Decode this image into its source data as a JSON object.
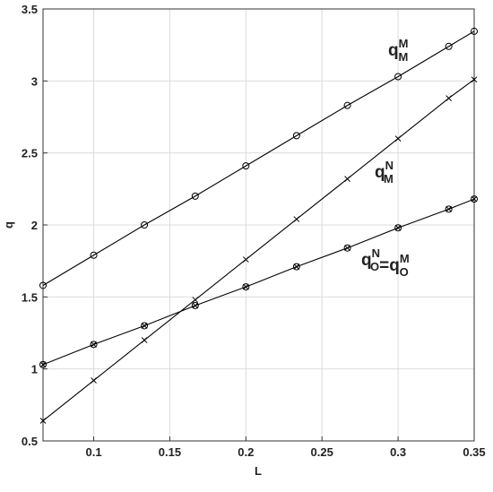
{
  "chart_data": {
    "type": "line",
    "xlabel": "L",
    "ylabel": "q",
    "x": [
      0.0667,
      0.1,
      0.1333,
      0.1667,
      0.2,
      0.2333,
      0.2667,
      0.3,
      0.3333,
      0.35
    ],
    "series": [
      {
        "color": "#000000",
        "marker": "o",
        "label": [
          {
            "base": "q",
            "sub": "M",
            "sup": "M"
          }
        ],
        "values": [
          1.58,
          1.79,
          2.0,
          2.2,
          2.41,
          2.62,
          2.83,
          3.03,
          3.24,
          3.345
        ]
      },
      {
        "color": "#000000",
        "marker": "x",
        "label": [
          {
            "base": "q",
            "sub": "M",
            "sup": "N"
          }
        ],
        "values": [
          0.64,
          0.92,
          1.2,
          1.48,
          1.76,
          2.04,
          2.32,
          2.6,
          2.88,
          3.01
        ]
      },
      {
        "color": "#000000",
        "marker": "ox",
        "label": [
          {
            "base": "q",
            "sub": "O",
            "sup": "N"
          },
          {
            "base": "=q",
            "sub": "O",
            "sup": "M"
          }
        ],
        "values": [
          1.03,
          1.17,
          1.3,
          1.44,
          1.57,
          1.71,
          1.84,
          1.98,
          2.11,
          2.18
        ]
      }
    ],
    "xlim": [
      0.0667,
      0.35
    ],
    "xticks": [
      0.1,
      0.15,
      0.2,
      0.25,
      0.3,
      0.35
    ],
    "ylim": [
      0.5,
      3.5
    ],
    "yticks": [
      0.5,
      1,
      1.5,
      2,
      2.5,
      3,
      3.5
    ],
    "grid": true
  }
}
